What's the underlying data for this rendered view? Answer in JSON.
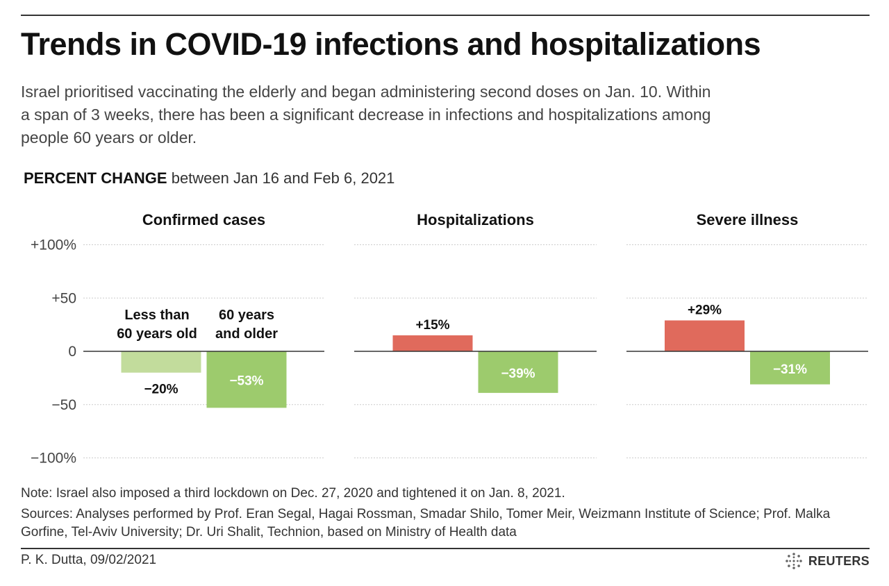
{
  "header": {
    "title": "Trends in COVID-19 infections and hospitalizations",
    "subtitle": "Israel prioritised vaccinating the elderly and began administering second doses on Jan. 10. Within a span of 3 weeks, there has been a significant decrease in infections and hospitalizations among people 60 years or older.",
    "metric_label": "PERCENT CHANGE",
    "metric_period": "between Jan 16 and Feb 6, 2021"
  },
  "colors": {
    "under60": "#c2dc9c",
    "over60_decrease": "#9dcb6d",
    "increase": "#e06a5c",
    "grid": "#cccccc",
    "zero_line": "#333333"
  },
  "chart_data": [
    {
      "type": "bar",
      "title": "Confirmed cases",
      "categories": [
        "Less than 60 years old",
        "60 years and older"
      ],
      "values": [
        -20,
        -53
      ],
      "value_labels": [
        "−20%",
        "−53%"
      ],
      "ylim": [
        -100,
        100
      ],
      "yticks": [
        "+100%",
        "+50",
        "0",
        "−50",
        "−100%"
      ],
      "grid": true
    },
    {
      "type": "bar",
      "title": "Hospitalizations",
      "categories": [
        "Less than 60 years old",
        "60 years and older"
      ],
      "values": [
        15,
        -39
      ],
      "value_labels": [
        "+15%",
        "−39%"
      ],
      "ylim": [
        -100,
        100
      ],
      "grid": true
    },
    {
      "type": "bar",
      "title": "Severe illness",
      "categories": [
        "Less than 60 years old",
        "60 years and older"
      ],
      "values": [
        29,
        -31
      ],
      "value_labels": [
        "+29%",
        "−31%"
      ],
      "ylim": [
        -100,
        100
      ],
      "grid": true
    }
  ],
  "legend_labels": {
    "under60": [
      "Less than",
      "60 years old"
    ],
    "over60": [
      "60 years",
      "and older"
    ]
  },
  "footer": {
    "note": "Note: Israel also imposed a third lockdown on Dec. 27, 2020 and tightened it on Jan. 8, 2021.",
    "sources": "Sources: Analyses performed by Prof. Eran Segal, Hagai Rossman, Smadar Shilo, Tomer Meir, Weizmann Institute of Science; Prof. Malka Gorfine, Tel-Aviv University; Dr. Uri Shalit, Technion, based on Ministry of Health data",
    "byline": "P. K. Dutta, 09/02/2021",
    "brand": "REUTERS",
    "brand_icon": "reuters-logo-icon"
  }
}
